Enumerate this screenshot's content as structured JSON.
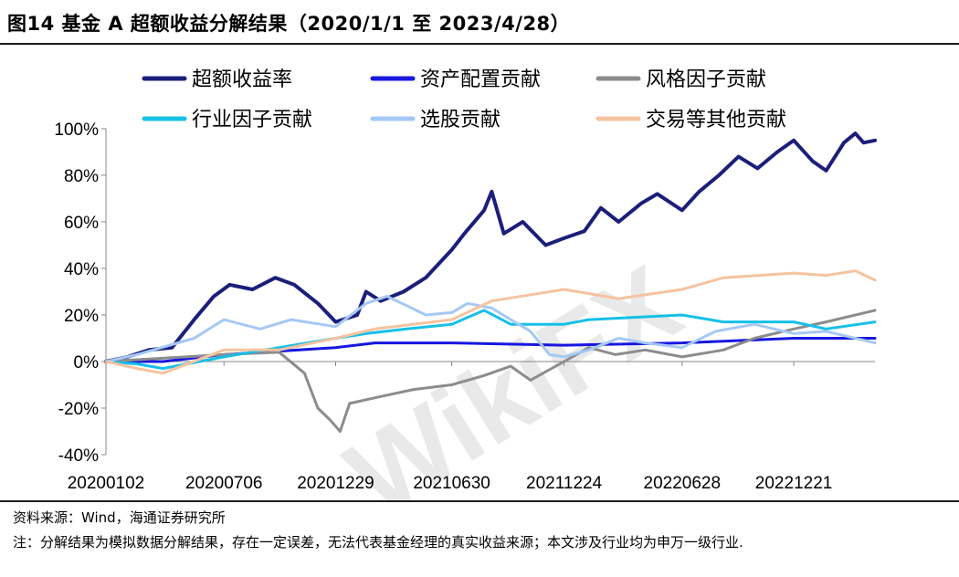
{
  "title": "图14 基金 A 超额收益分解结果（2020/1/1 至 2023/4/28）",
  "watermark": "WikiFX",
  "source": "资料来源：Wind，海通证券研究所",
  "note": "注：分解结果为模拟数据分解结果，存在一定误差，无法代表基金经理的真实收益来源；本文涉及行业均为申万一级行业.",
  "chart_data": {
    "type": "line",
    "ylim": [
      -40,
      100
    ],
    "yticks": [
      -40,
      -20,
      0,
      20,
      40,
      60,
      80,
      100
    ],
    "ytick_labels": [
      "-40%",
      "-20%",
      "0%",
      "20%",
      "40%",
      "60%",
      "80%",
      "100%"
    ],
    "xlim": [
      "2020-01-02",
      "2023-04-28"
    ],
    "xtick_labels": [
      "20200102",
      "20200706",
      "20201229",
      "20210630",
      "20211224",
      "20220628",
      "20221221"
    ],
    "xtick_dates": [
      "2020-01-02",
      "2020-07-06",
      "2020-12-29",
      "2021-06-30",
      "2021-12-24",
      "2022-06-28",
      "2022-12-21"
    ],
    "grid": false,
    "legend_position": "top",
    "series": [
      {
        "name": "超额收益率",
        "color": "#1b1f7a",
        "width": 4,
        "points": [
          [
            "2020-01-02",
            0
          ],
          [
            "2020-02-05",
            2
          ],
          [
            "2020-03-10",
            5
          ],
          [
            "2020-04-15",
            6
          ],
          [
            "2020-05-20",
            18
          ],
          [
            "2020-06-20",
            28
          ],
          [
            "2020-07-15",
            33
          ],
          [
            "2020-08-20",
            31
          ],
          [
            "2020-09-25",
            36
          ],
          [
            "2020-10-25",
            33
          ],
          [
            "2020-12-01",
            25
          ],
          [
            "2020-12-29",
            17
          ],
          [
            "2021-02-01",
            20
          ],
          [
            "2021-02-15",
            30
          ],
          [
            "2021-03-10",
            26
          ],
          [
            "2021-04-15",
            30
          ],
          [
            "2021-05-20",
            36
          ],
          [
            "2021-06-30",
            48
          ],
          [
            "2021-07-20",
            55
          ],
          [
            "2021-08-20",
            65
          ],
          [
            "2021-09-01",
            73
          ],
          [
            "2021-09-20",
            55
          ],
          [
            "2021-10-20",
            60
          ],
          [
            "2021-11-25",
            50
          ],
          [
            "2021-12-24",
            53
          ],
          [
            "2022-01-25",
            56
          ],
          [
            "2022-02-20",
            66
          ],
          [
            "2022-03-20",
            60
          ],
          [
            "2022-04-25",
            68
          ],
          [
            "2022-05-20",
            72
          ],
          [
            "2022-06-28",
            65
          ],
          [
            "2022-07-25",
            73
          ],
          [
            "2022-08-25",
            80
          ],
          [
            "2022-09-25",
            88
          ],
          [
            "2022-10-25",
            83
          ],
          [
            "2022-11-25",
            90
          ],
          [
            "2022-12-21",
            95
          ],
          [
            "2023-01-20",
            86
          ],
          [
            "2023-02-10",
            82
          ],
          [
            "2023-03-10",
            94
          ],
          [
            "2023-03-28",
            98
          ],
          [
            "2023-04-10",
            94
          ],
          [
            "2023-04-28",
            95
          ]
        ]
      },
      {
        "name": "资产配置贡献",
        "color": "#1717e0",
        "width": 3,
        "points": [
          [
            "2020-01-02",
            0
          ],
          [
            "2020-04-01",
            0
          ],
          [
            "2020-07-06",
            3
          ],
          [
            "2020-12-29",
            6
          ],
          [
            "2021-03-01",
            8
          ],
          [
            "2021-06-30",
            8
          ],
          [
            "2021-12-24",
            7
          ],
          [
            "2022-06-28",
            8
          ],
          [
            "2022-12-21",
            10
          ],
          [
            "2023-04-28",
            10
          ]
        ]
      },
      {
        "name": "风格因子贡献",
        "color": "#8c8c8c",
        "width": 3,
        "points": [
          [
            "2020-01-02",
            0
          ],
          [
            "2020-07-06",
            3
          ],
          [
            "2020-10-01",
            4
          ],
          [
            "2020-11-10",
            -5
          ],
          [
            "2020-12-01",
            -20
          ],
          [
            "2020-12-20",
            -25
          ],
          [
            "2021-01-05",
            -30
          ],
          [
            "2021-01-20",
            -18
          ],
          [
            "2021-03-10",
            -15
          ],
          [
            "2021-05-01",
            -12
          ],
          [
            "2021-06-30",
            -10
          ],
          [
            "2021-08-20",
            -6
          ],
          [
            "2021-10-01",
            -2
          ],
          [
            "2021-11-01",
            -8
          ],
          [
            "2021-12-24",
            0
          ],
          [
            "2022-02-01",
            6
          ],
          [
            "2022-03-15",
            3
          ],
          [
            "2022-05-01",
            5
          ],
          [
            "2022-06-28",
            2
          ],
          [
            "2022-09-01",
            5
          ],
          [
            "2022-10-20",
            10
          ],
          [
            "2022-12-21",
            14
          ],
          [
            "2023-02-10",
            17
          ],
          [
            "2023-04-28",
            22
          ]
        ]
      },
      {
        "name": "行业因子贡献",
        "color": "#16c0e8",
        "width": 3,
        "points": [
          [
            "2020-01-02",
            0
          ],
          [
            "2020-02-20",
            -1
          ],
          [
            "2020-04-01",
            -3
          ],
          [
            "2020-07-06",
            2
          ],
          [
            "2020-10-01",
            6
          ],
          [
            "2020-12-29",
            10
          ],
          [
            "2021-02-15",
            12
          ],
          [
            "2021-04-20",
            14
          ],
          [
            "2021-06-30",
            16
          ],
          [
            "2021-08-20",
            22
          ],
          [
            "2021-10-01",
            16
          ],
          [
            "2021-12-24",
            16
          ],
          [
            "2022-02-01",
            18
          ],
          [
            "2022-06-28",
            20
          ],
          [
            "2022-09-01",
            17
          ],
          [
            "2022-12-21",
            17
          ],
          [
            "2023-02-10",
            14
          ],
          [
            "2023-04-28",
            17
          ]
        ]
      },
      {
        "name": "选股贡献",
        "color": "#a5c8f5",
        "width": 3,
        "points": [
          [
            "2020-01-02",
            0
          ],
          [
            "2020-02-20",
            3
          ],
          [
            "2020-05-20",
            10
          ],
          [
            "2020-07-06",
            18
          ],
          [
            "2020-09-01",
            14
          ],
          [
            "2020-10-20",
            18
          ],
          [
            "2020-12-29",
            15
          ],
          [
            "2021-02-15",
            25
          ],
          [
            "2021-03-20",
            28
          ],
          [
            "2021-04-20",
            24
          ],
          [
            "2021-05-20",
            20
          ],
          [
            "2021-06-30",
            21
          ],
          [
            "2021-07-25",
            25
          ],
          [
            "2021-09-01",
            23
          ],
          [
            "2021-10-01",
            18
          ],
          [
            "2021-11-01",
            13
          ],
          [
            "2021-12-01",
            3
          ],
          [
            "2021-12-24",
            2
          ],
          [
            "2022-02-01",
            5
          ],
          [
            "2022-03-20",
            10
          ],
          [
            "2022-05-01",
            8
          ],
          [
            "2022-06-28",
            6
          ],
          [
            "2022-08-20",
            13
          ],
          [
            "2022-10-20",
            16
          ],
          [
            "2022-12-21",
            12
          ],
          [
            "2023-02-10",
            13
          ],
          [
            "2023-04-28",
            8
          ]
        ]
      },
      {
        "name": "交易等其他贡献",
        "color": "#f5c3a0",
        "width": 3,
        "points": [
          [
            "2020-01-02",
            0
          ],
          [
            "2020-02-20",
            -3
          ],
          [
            "2020-04-01",
            -5
          ],
          [
            "2020-07-06",
            5
          ],
          [
            "2020-10-01",
            5
          ],
          [
            "2020-12-29",
            10
          ],
          [
            "2021-03-01",
            14
          ],
          [
            "2021-06-30",
            18
          ],
          [
            "2021-09-01",
            26
          ],
          [
            "2021-12-24",
            31
          ],
          [
            "2022-03-20",
            27
          ],
          [
            "2022-06-28",
            31
          ],
          [
            "2022-09-01",
            36
          ],
          [
            "2022-12-21",
            38
          ],
          [
            "2023-02-10",
            37
          ],
          [
            "2023-03-28",
            39
          ],
          [
            "2023-04-28",
            35
          ]
        ]
      }
    ]
  }
}
